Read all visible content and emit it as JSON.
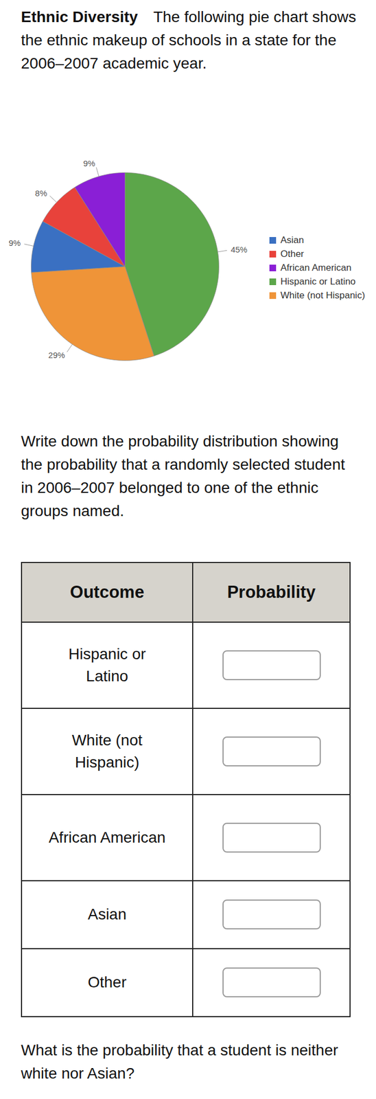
{
  "header": {
    "title": "Ethnic Diversity",
    "text": "The following pie chart shows the ethnic makeup of schools in a state for the 2006–2007 academic year."
  },
  "chart_data": {
    "type": "pie",
    "categories": [
      "Asian",
      "Other",
      "African American",
      "Hispanic or Latino",
      "White (not Hispanic)"
    ],
    "values": [
      9,
      8,
      9,
      45,
      29
    ],
    "value_labels": [
      "9%",
      "8%",
      "9%",
      "45%",
      "29%"
    ],
    "colors": [
      "#3a70c2",
      "#e8423b",
      "#8a1fd6",
      "#5ca64a",
      "#ef9438"
    ],
    "data_labels": true,
    "legend": "right",
    "tick_labels": false
  },
  "question": "Write down the probability distribution showing the probability that a randomly selected student in 2006–2007 belonged to one of the ethnic groups named.",
  "table": {
    "columns": [
      "Outcome",
      "Probability"
    ],
    "rows": [
      "Hispanic or Latino",
      "White (not Hispanic)",
      "African American",
      "Asian",
      "Other"
    ]
  },
  "footer": "What is the probability that a student is neither white nor Asian?"
}
